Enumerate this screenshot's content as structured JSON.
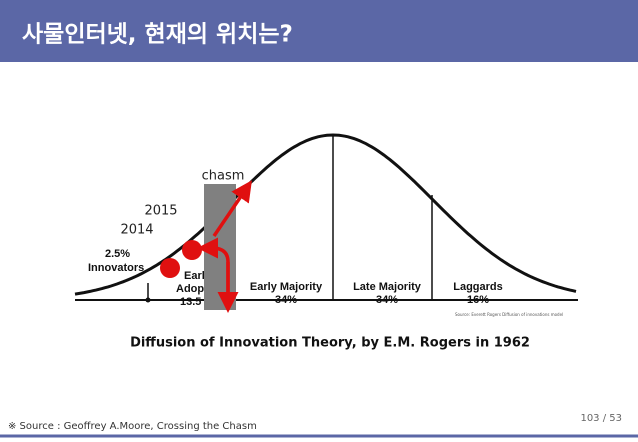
{
  "header": {
    "title": "사물인터넷, 현재의 위치는?"
  },
  "diagram": {
    "segments": [
      {
        "percent": "2.5%",
        "label": "Innovators"
      },
      {
        "label_line1": "Earl",
        "label_line2": "Adopt",
        "percent": "13.5"
      },
      {
        "label": "Early Majority",
        "percent": "34%"
      },
      {
        "label": "Late Majority",
        "percent": "34%"
      },
      {
        "label": "Laggards",
        "percent": "16%"
      }
    ],
    "annotations": {
      "chasm": "chasm",
      "year1": "2014",
      "year2": "2015"
    },
    "source_note": "Source: Everett Rogers Diffusion of innovations model",
    "caption": "Diffusion of Innovation Theory, by E.M. Rogers in 1962"
  },
  "footer": {
    "source": "※ Source : Geoffrey A.Moore, Crossing the Chasm",
    "page": "103 / 53"
  }
}
